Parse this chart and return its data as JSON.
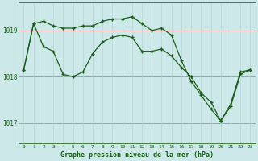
{
  "title": "Graphe pression niveau de la mer (hPa)",
  "bg_color": "#cce8e8",
  "grid_color_h": "#b8d4d4",
  "grid_color_v": "#c8e0e0",
  "line_color": "#1a5c1a",
  "xmin": -0.5,
  "xmax": 23.5,
  "ymin": 1016.55,
  "ymax": 1019.6,
  "yticks": [
    1017,
    1018,
    1019
  ],
  "xticks": [
    0,
    1,
    2,
    3,
    4,
    5,
    6,
    7,
    8,
    9,
    10,
    11,
    12,
    13,
    14,
    15,
    16,
    17,
    18,
    19,
    20,
    21,
    22,
    23
  ],
  "line1_x": [
    0,
    1,
    2,
    3,
    4,
    5,
    6,
    7,
    8,
    9,
    10,
    11,
    12,
    13,
    14,
    15,
    16,
    17,
    18,
    19,
    20,
    21,
    22,
    23
  ],
  "line1_y": [
    1018.15,
    1019.15,
    1019.2,
    1019.1,
    1019.05,
    1019.05,
    1019.1,
    1019.1,
    1019.2,
    1019.25,
    1019.25,
    1019.3,
    1019.15,
    1019.0,
    1019.05,
    1018.9,
    1018.35,
    1017.9,
    1017.6,
    1017.3,
    1017.05,
    1017.4,
    1018.1,
    1018.15
  ],
  "line2_x": [
    0,
    1,
    2,
    3,
    4,
    5,
    6,
    7,
    8,
    9,
    10,
    11,
    12,
    13,
    14,
    15,
    16,
    17,
    18,
    19,
    20,
    21,
    22,
    23
  ],
  "line2_y": [
    1018.15,
    1019.15,
    1018.65,
    1018.55,
    1018.05,
    1018.0,
    1018.1,
    1018.5,
    1018.75,
    1018.85,
    1018.9,
    1018.85,
    1018.55,
    1018.55,
    1018.6,
    1018.45,
    1018.2,
    1018.0,
    1017.65,
    1017.45,
    1017.05,
    1017.35,
    1018.05,
    1018.15
  ]
}
